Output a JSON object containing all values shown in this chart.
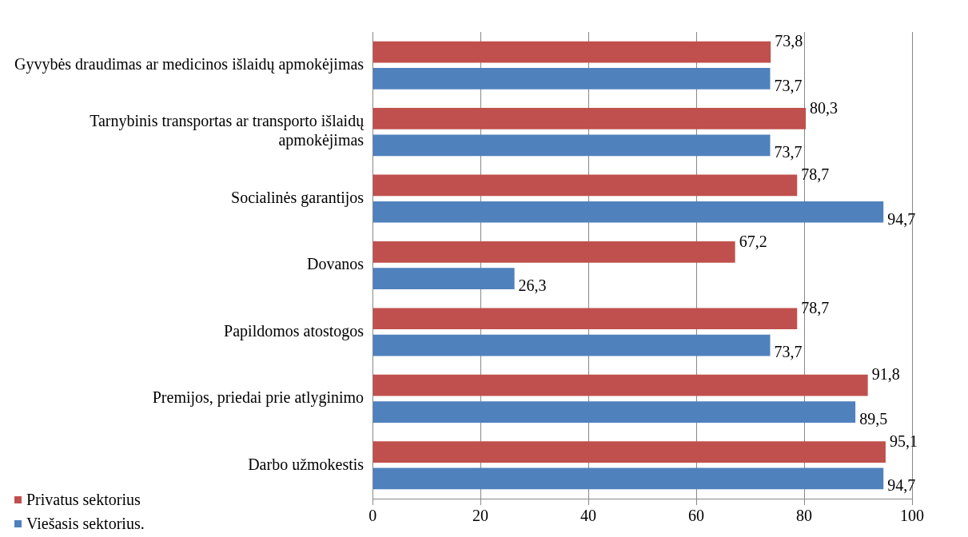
{
  "chart_data": {
    "type": "bar",
    "orientation": "horizontal",
    "categories": [
      "Gyvybės draudimas ar medicinos išlaidų apmokėjimas",
      "Tarnybinis transportas ar transporto išlaidų apmokėjimas",
      "Socialinės garantijos",
      "Dovanos",
      "Papildomos atostogos",
      "Premijos, priedai prie atlyginimo",
      "Darbo užmokestis"
    ],
    "series": [
      {
        "name": "Privatus sektorius",
        "color": "#c0504d",
        "values": [
          73.8,
          80.3,
          78.7,
          67.2,
          78.7,
          91.8,
          95.1
        ],
        "value_labels": [
          "73,8",
          "80,3",
          "78,7",
          "67,2",
          "78,7",
          "91,8",
          "95,1"
        ]
      },
      {
        "name": "Viešasis sektorius.",
        "color": "#4f81bd",
        "values": [
          73.7,
          73.7,
          94.7,
          26.3,
          73.7,
          89.5,
          94.7
        ],
        "value_labels": [
          "73,7",
          "73,7",
          "94,7",
          "26,3",
          "73,7",
          "89,5",
          "94,7"
        ]
      }
    ],
    "xlim": [
      0,
      100
    ],
    "xticks": [
      0,
      20,
      40,
      60,
      80,
      100
    ],
    "grid": "x",
    "legend": "bottom left"
  }
}
